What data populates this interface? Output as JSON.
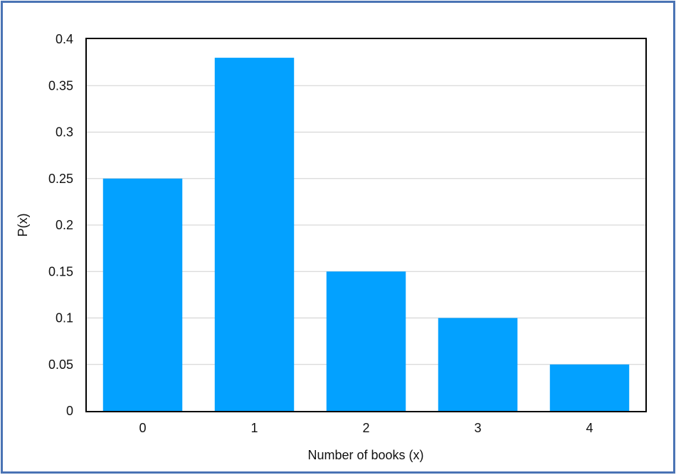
{
  "chart_data": {
    "type": "bar",
    "categories": [
      "0",
      "1",
      "2",
      "3",
      "4"
    ],
    "values": [
      0.25,
      0.38,
      0.15,
      0.1,
      0.05
    ],
    "xlabel": "Number of books (x)",
    "ylabel": "P(x)",
    "ylim": [
      0,
      0.4
    ],
    "yticks": [
      "0",
      "0.05",
      "0.1",
      "0.15",
      "0.2",
      "0.25",
      "0.3",
      "0.35",
      "0.4"
    ],
    "grid": true,
    "legend": "none",
    "colors": {
      "bar": "#03a1ff",
      "grid": "#cfcfcf",
      "axis": "#000000",
      "border": "#4a73b4"
    }
  }
}
